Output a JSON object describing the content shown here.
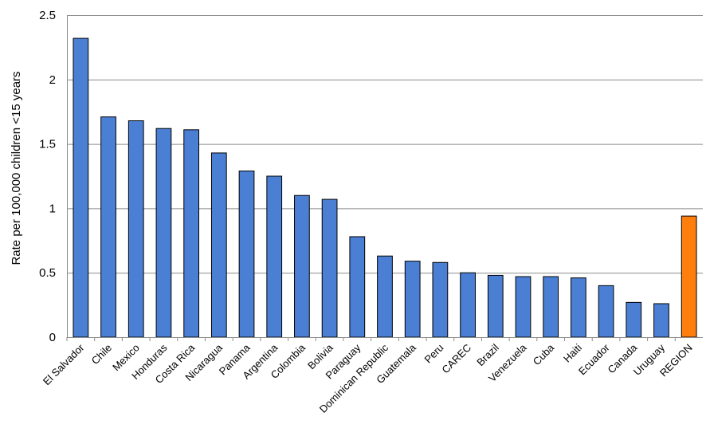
{
  "chart_data": {
    "type": "bar",
    "title": "",
    "xlabel": "",
    "ylabel": "Rate per 100,000 children <15 years",
    "ylim": [
      0,
      2.5
    ],
    "yticks": [
      "0",
      "0.5",
      "1",
      "1.5",
      "2",
      "2.5"
    ],
    "grid": true,
    "categories": [
      "El Salvador",
      "Chile",
      "Mexico",
      "Honduras",
      "Costa Rica",
      "Nicaragua",
      "Panama",
      "Argentina",
      "Colombia",
      "Bolivia",
      "Paraguay",
      "Dominican Republic",
      "Guatemala",
      "Peru",
      "CAREC",
      "Brazil",
      "Venezuela",
      "Cuba",
      "Haiti",
      "Ecuador",
      "Canada",
      "Uruguay",
      "REGION"
    ],
    "values": [
      2.32,
      1.71,
      1.68,
      1.62,
      1.61,
      1.43,
      1.29,
      1.25,
      1.1,
      1.07,
      0.78,
      0.63,
      0.59,
      0.58,
      0.5,
      0.48,
      0.47,
      0.47,
      0.46,
      0.4,
      0.27,
      0.26,
      0.94
    ],
    "colors": {
      "default_bar": "#4a7fd4",
      "highlight_bar": "#ff7f0e",
      "bar_outline": "#000000"
    },
    "highlight_category": "REGION"
  }
}
